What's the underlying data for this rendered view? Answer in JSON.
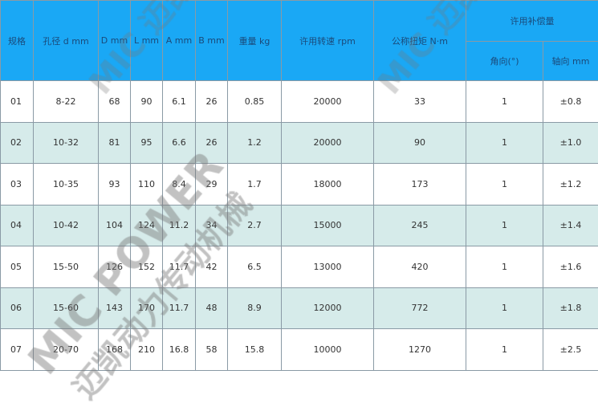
{
  "header": {
    "spec": "规格",
    "bore": "孔径 d mm",
    "D": "D mm",
    "L": "L mm",
    "A": "A mm",
    "B": "B mm",
    "weight": "重量 kg",
    "speed": "许用转速 rpm",
    "torque": "公称扭矩 N·m",
    "comp": "许用补偿量",
    "angle": "角向(°)",
    "axial": "轴向 mm"
  },
  "rows": [
    [
      "01",
      "8-22",
      "68",
      "90",
      "6.1",
      "26",
      "0.85",
      "20000",
      "33",
      "1",
      "±0.8"
    ],
    [
      "02",
      "10-32",
      "81",
      "95",
      "6.6",
      "26",
      "1.2",
      "20000",
      "90",
      "1",
      "±1.0"
    ],
    [
      "03",
      "10-35",
      "93",
      "110",
      "8.4",
      "29",
      "1.7",
      "18000",
      "173",
      "1",
      "±1.2"
    ],
    [
      "04",
      "10-42",
      "104",
      "124",
      "11.2",
      "34",
      "2.7",
      "15000",
      "245",
      "1",
      "±1.4"
    ],
    [
      "05",
      "15-50",
      "126",
      "152",
      "11.7",
      "42",
      "6.5",
      "13000",
      "420",
      "1",
      "±1.6"
    ],
    [
      "06",
      "15-60",
      "143",
      "170",
      "11.7",
      "48",
      "8.9",
      "12000",
      "772",
      "1",
      "±1.8"
    ],
    [
      "07",
      "20-70",
      "168",
      "210",
      "16.8",
      "58",
      "15.8",
      "10000",
      "1270",
      "1",
      "±2.5"
    ]
  ],
  "watermark": {
    "en": "MIC POWER",
    "cn": "迈凯动力传动机械"
  },
  "colors": {
    "header": "#1aa8f5",
    "alt_row": "#d6ebea"
  }
}
